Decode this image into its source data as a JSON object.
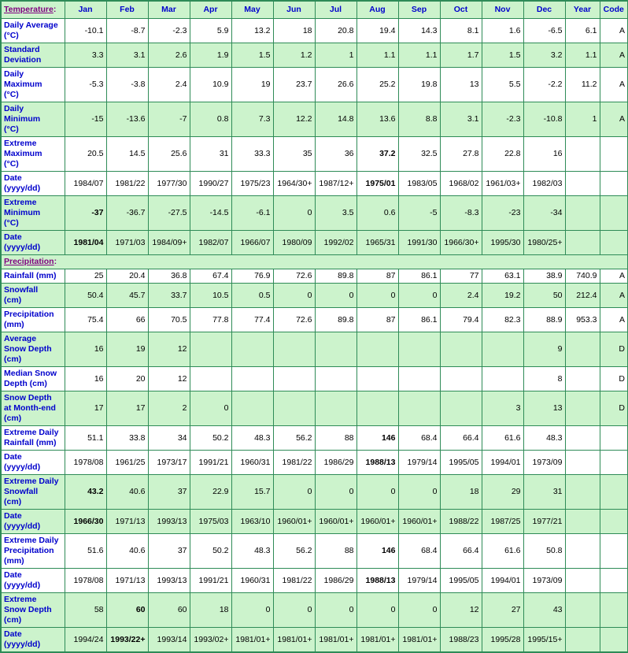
{
  "colors": {
    "grid_border": "#2E8B57",
    "row_green": "#CCF3CC",
    "row_white": "#FFFFFF",
    "header_text_blue": "#0000CC",
    "section_text_purple": "#800080",
    "value_text": "#000000"
  },
  "chart_data": {
    "type": "table",
    "columns": [
      "Jan",
      "Feb",
      "Mar",
      "Apr",
      "May",
      "Jun",
      "Jul",
      "Aug",
      "Sep",
      "Oct",
      "Nov",
      "Dec",
      "Year",
      "Code"
    ],
    "sections": [
      {
        "label": "Temperature",
        "colon": ":",
        "rows": [
          {
            "label": "Daily Average (°C)",
            "label_lines": [
              "Daily Average",
              "(°C)"
            ],
            "shade": "white",
            "bold": [],
            "values": [
              "-10.1",
              "-8.7",
              "-2.3",
              "5.9",
              "13.2",
              "18",
              "20.8",
              "19.4",
              "14.3",
              "8.1",
              "1.6",
              "-6.5"
            ],
            "year": "6.1",
            "code": "A"
          },
          {
            "label": "Standard Deviation",
            "label_lines": [
              "Standard",
              "Deviation"
            ],
            "shade": "green",
            "bold": [],
            "values": [
              "3.3",
              "3.1",
              "2.6",
              "1.9",
              "1.5",
              "1.2",
              "1",
              "1.1",
              "1.1",
              "1.7",
              "1.5",
              "3.2"
            ],
            "year": "1.1",
            "code": "A"
          },
          {
            "label": "Daily Maximum (°C)",
            "label_lines": [
              "Daily",
              "Maximum",
              "(°C)"
            ],
            "shade": "white",
            "bold": [],
            "values": [
              "-5.3",
              "-3.8",
              "2.4",
              "10.9",
              "19",
              "23.7",
              "26.6",
              "25.2",
              "19.8",
              "13",
              "5.5",
              "-2.2"
            ],
            "year": "11.2",
            "code": "A"
          },
          {
            "label": "Daily Minimum (°C)",
            "label_lines": [
              "Daily",
              "Minimum",
              "(°C)"
            ],
            "shade": "green",
            "bold": [],
            "values": [
              "-15",
              "-13.6",
              "-7",
              "0.8",
              "7.3",
              "12.2",
              "14.8",
              "13.6",
              "8.8",
              "3.1",
              "-2.3",
              "-10.8"
            ],
            "year": "1",
            "code": "A"
          },
          {
            "label": "Extreme Maximum (°C)",
            "label_lines": [
              "Extreme",
              "Maximum",
              "(°C)"
            ],
            "shade": "white",
            "bold": [
              7
            ],
            "values": [
              "20.5",
              "14.5",
              "25.6",
              "31",
              "33.3",
              "35",
              "36",
              "37.2",
              "32.5",
              "27.8",
              "22.8",
              "16"
            ],
            "year": "",
            "code": ""
          },
          {
            "label": "Date (yyyy/dd)",
            "label_lines": [
              "Date",
              "(yyyy/dd)"
            ],
            "shade": "white",
            "bold": [
              7
            ],
            "values": [
              "1984/07",
              "1981/22",
              "1977/30",
              "1990/27",
              "1975/23",
              "1964/30+",
              "1987/12+",
              "1975/01",
              "1983/05",
              "1968/02",
              "1961/03+",
              "1982/03"
            ],
            "year": "",
            "code": ""
          },
          {
            "label": "Extreme Minimum (°C)",
            "label_lines": [
              "Extreme",
              "Minimum",
              "(°C)"
            ],
            "shade": "green",
            "bold": [
              0
            ],
            "values": [
              "-37",
              "-36.7",
              "-27.5",
              "-14.5",
              "-6.1",
              "0",
              "3.5",
              "0.6",
              "-5",
              "-8.3",
              "-23",
              "-34"
            ],
            "year": "",
            "code": ""
          },
          {
            "label": "Date (yyyy/dd)",
            "label_lines": [
              "Date",
              "(yyyy/dd)"
            ],
            "shade": "green",
            "bold": [
              0
            ],
            "values": [
              "1981/04",
              "1971/03",
              "1984/09+",
              "1982/07",
              "1966/07",
              "1980/09",
              "1992/02",
              "1965/31",
              "1991/30",
              "1966/30+",
              "1995/30",
              "1980/25+"
            ],
            "year": "",
            "code": ""
          }
        ]
      },
      {
        "label": "Precipitation",
        "colon": ":",
        "rows": [
          {
            "label": "Rainfall (mm)",
            "label_lines": [
              "Rainfall (mm)"
            ],
            "shade": "white",
            "bold": [],
            "values": [
              "25",
              "20.4",
              "36.8",
              "67.4",
              "76.9",
              "72.6",
              "89.8",
              "87",
              "86.1",
              "77",
              "63.1",
              "38.9"
            ],
            "year": "740.9",
            "code": "A"
          },
          {
            "label": "Snowfall (cm)",
            "label_lines": [
              "Snowfall",
              "(cm)"
            ],
            "shade": "green",
            "bold": [],
            "values": [
              "50.4",
              "45.7",
              "33.7",
              "10.5",
              "0.5",
              "0",
              "0",
              "0",
              "0",
              "2.4",
              "19.2",
              "50"
            ],
            "year": "212.4",
            "code": "A"
          },
          {
            "label": "Precipitation (mm)",
            "label_lines": [
              "Precipitation",
              "(mm)"
            ],
            "shade": "white",
            "bold": [],
            "values": [
              "75.4",
              "66",
              "70.5",
              "77.8",
              "77.4",
              "72.6",
              "89.8",
              "87",
              "86.1",
              "79.4",
              "82.3",
              "88.9"
            ],
            "year": "953.3",
            "code": "A"
          },
          {
            "label": "Average Snow Depth (cm)",
            "label_lines": [
              "Average",
              "Snow Depth",
              "(cm)"
            ],
            "shade": "green",
            "bold": [],
            "values": [
              "16",
              "19",
              "12",
              "",
              "",
              "",
              "",
              "",
              "",
              "",
              "",
              "9"
            ],
            "year": "",
            "code": "D"
          },
          {
            "label": "Median Snow Depth (cm)",
            "label_lines": [
              "Median Snow",
              "Depth (cm)"
            ],
            "shade": "white",
            "bold": [],
            "values": [
              "16",
              "20",
              "12",
              "",
              "",
              "",
              "",
              "",
              "",
              "",
              "",
              "8"
            ],
            "year": "",
            "code": "D"
          },
          {
            "label": "Snow Depth at Month-end (cm)",
            "label_lines": [
              "Snow Depth",
              "at Month-end",
              "(cm)"
            ],
            "shade": "green",
            "bold": [],
            "values": [
              "17",
              "17",
              "2",
              "0",
              "",
              "",
              "",
              "",
              "",
              "",
              "3",
              "13"
            ],
            "year": "",
            "code": "D"
          },
          {
            "label": "Extreme Daily Rainfall (mm)",
            "label_lines": [
              "Extreme Daily",
              "Rainfall (mm)"
            ],
            "shade": "white",
            "bold": [
              7
            ],
            "values": [
              "51.1",
              "33.8",
              "34",
              "50.2",
              "48.3",
              "56.2",
              "88",
              "146",
              "68.4",
              "66.4",
              "61.6",
              "48.3"
            ],
            "year": "",
            "code": ""
          },
          {
            "label": "Date (yyyy/dd)",
            "label_lines": [
              "Date",
              "(yyyy/dd)"
            ],
            "shade": "white",
            "bold": [
              7
            ],
            "values": [
              "1978/08",
              "1961/25",
              "1973/17",
              "1991/21",
              "1960/31",
              "1981/22",
              "1986/29",
              "1988/13",
              "1979/14",
              "1995/05",
              "1994/01",
              "1973/09"
            ],
            "year": "",
            "code": ""
          },
          {
            "label": "Extreme Daily Snowfall (cm)",
            "label_lines": [
              "Extreme Daily",
              "Snowfall",
              "(cm)"
            ],
            "shade": "green",
            "bold": [
              0
            ],
            "values": [
              "43.2",
              "40.6",
              "37",
              "22.9",
              "15.7",
              "0",
              "0",
              "0",
              "0",
              "18",
              "29",
              "31"
            ],
            "year": "",
            "code": ""
          },
          {
            "label": "Date (yyyy/dd)",
            "label_lines": [
              "Date",
              "(yyyy/dd)"
            ],
            "shade": "green",
            "bold": [
              0
            ],
            "values": [
              "1966/30",
              "1971/13",
              "1993/13",
              "1975/03",
              "1963/10",
              "1960/01+",
              "1960/01+",
              "1960/01+",
              "1960/01+",
              "1988/22",
              "1987/25",
              "1977/21"
            ],
            "year": "",
            "code": ""
          },
          {
            "label": "Extreme Daily Precipitation (mm)",
            "label_lines": [
              "Extreme Daily",
              "Precipitation",
              "(mm)"
            ],
            "shade": "white",
            "bold": [
              7
            ],
            "values": [
              "51.6",
              "40.6",
              "37",
              "50.2",
              "48.3",
              "56.2",
              "88",
              "146",
              "68.4",
              "66.4",
              "61.6",
              "50.8"
            ],
            "year": "",
            "code": ""
          },
          {
            "label": "Date (yyyy/dd)",
            "label_lines": [
              "Date",
              "(yyyy/dd)"
            ],
            "shade": "white",
            "bold": [
              7
            ],
            "values": [
              "1978/08",
              "1971/13",
              "1993/13",
              "1991/21",
              "1960/31",
              "1981/22",
              "1986/29",
              "1988/13",
              "1979/14",
              "1995/05",
              "1994/01",
              "1973/09"
            ],
            "year": "",
            "code": ""
          },
          {
            "label": "Extreme Snow Depth (cm)",
            "label_lines": [
              "Extreme",
              "Snow Depth",
              "(cm)"
            ],
            "shade": "green",
            "bold": [
              1
            ],
            "values": [
              "58",
              "60",
              "60",
              "18",
              "0",
              "0",
              "0",
              "0",
              "0",
              "12",
              "27",
              "43"
            ],
            "year": "",
            "code": ""
          },
          {
            "label": "Date (yyyy/dd)",
            "label_lines": [
              "Date",
              "(yyyy/dd)"
            ],
            "shade": "green",
            "bold": [
              1
            ],
            "values": [
              "1994/24",
              "1993/22+",
              "1993/14",
              "1993/02+",
              "1981/01+",
              "1981/01+",
              "1981/01+",
              "1981/01+",
              "1981/01+",
              "1988/23",
              "1995/28",
              "1995/15+"
            ],
            "year": "",
            "code": ""
          }
        ]
      }
    ]
  }
}
